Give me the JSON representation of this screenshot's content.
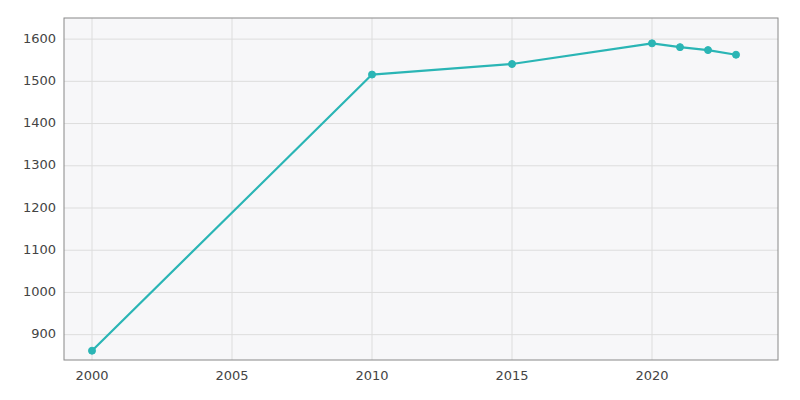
{
  "chart_data": {
    "type": "line",
    "x": [
      2000,
      2010,
      2015,
      2020,
      2021,
      2022,
      2023
    ],
    "values": [
      862,
      1516,
      1541,
      1590,
      1581,
      1574,
      1563
    ],
    "color": "#2ab5b5",
    "marker": "circle",
    "xlim": [
      1999,
      2024.5
    ],
    "ylim": [
      840,
      1650
    ],
    "xticks": [
      2000,
      2005,
      2010,
      2015,
      2020
    ],
    "yticks": [
      900,
      1000,
      1100,
      1200,
      1300,
      1400,
      1500,
      1600
    ],
    "grid": true
  }
}
